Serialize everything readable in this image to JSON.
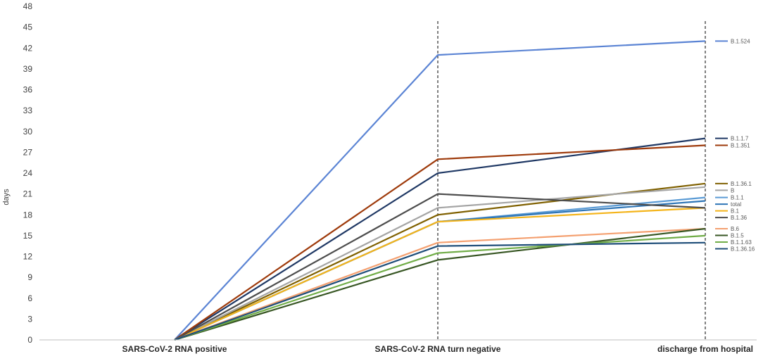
{
  "chart_data": {
    "type": "line",
    "title": "",
    "xlabel": "",
    "ylabel": "days",
    "categories": [
      "SARS-CoV-2 RNA positive",
      "SARS-CoV-2 RNA turn negative",
      "discharge from hospital"
    ],
    "ylim": [
      0,
      48
    ],
    "yticks": [
      0,
      3,
      6,
      9,
      12,
      15,
      18,
      21,
      24,
      27,
      30,
      33,
      36,
      39,
      42,
      45,
      48
    ],
    "grid": false,
    "legend": "right",
    "vertical_dashed_lines_at": [
      "SARS-CoV-2 RNA turn negative",
      "discharge from hospital"
    ],
    "series": [
      {
        "name": "B.1.524",
        "values": [
          0,
          41,
          43
        ],
        "color": "#5B84D4"
      },
      {
        "name": "B.1.1.7",
        "values": [
          0,
          24,
          29
        ],
        "color": "#1F3864"
      },
      {
        "name": "B.1.351",
        "values": [
          0,
          26,
          28
        ],
        "color": "#9E3A0B"
      },
      {
        "name": "B.1.36.1",
        "values": [
          0,
          18,
          22.5
        ],
        "color": "#7F6000"
      },
      {
        "name": "B",
        "values": [
          0,
          19,
          22
        ],
        "color": "#A5A5A5"
      },
      {
        "name": "B.1.1",
        "values": [
          0,
          17,
          20.5
        ],
        "color": "#5B9BD5"
      },
      {
        "name": "total",
        "values": [
          0,
          17,
          20
        ],
        "color": "#2E75B6"
      },
      {
        "name": "B.1",
        "values": [
          0,
          17,
          19
        ],
        "color": "#F4B41A"
      },
      {
        "name": "B.1.36",
        "values": [
          0,
          21,
          19
        ],
        "color": "#4D4D4D"
      },
      {
        "name": "B.6",
        "values": [
          0,
          14,
          16
        ],
        "color": "#F4A070"
      },
      {
        "name": "B.1.5",
        "values": [
          0,
          11.5,
          16
        ],
        "color": "#375623"
      },
      {
        "name": "B.1.1.63",
        "values": [
          0,
          12.5,
          15
        ],
        "color": "#70AD47"
      },
      {
        "name": "B.1.36.16",
        "values": [
          0,
          13.5,
          14
        ],
        "color": "#1F4E79"
      }
    ]
  }
}
